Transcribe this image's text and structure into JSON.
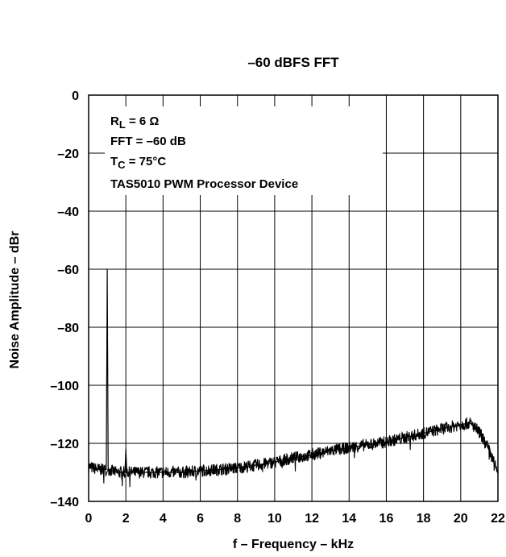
{
  "chart_data": {
    "type": "line",
    "title": "–60 dBFS FFT",
    "xlabel": "f – Frequency – kHz",
    "ylabel": "Noise Amplitude – dBr",
    "xlim": [
      0,
      22
    ],
    "ylim": [
      -140,
      0
    ],
    "xticks": [
      0,
      2,
      4,
      6,
      8,
      10,
      12,
      14,
      16,
      18,
      20,
      22
    ],
    "yticks": [
      0,
      -20,
      -40,
      -60,
      -80,
      -100,
      -120,
      -140
    ],
    "xtick_labels": [
      "0",
      "2",
      "4",
      "6",
      "8",
      "10",
      "12",
      "14",
      "16",
      "18",
      "20",
      "22"
    ],
    "ytick_labels": [
      "0",
      "–20",
      "–40",
      "–60",
      "–80",
      "–100",
      "–120",
      "–140"
    ],
    "grid": true,
    "annotation": {
      "rl_prefix": "R",
      "rl_sub": "L",
      "rl_rest": " = 6 Ω",
      "fft": "FFT = –60 dB",
      "tc_prefix": "T",
      "tc_sub": "C",
      "tc_rest": " = 75°C",
      "device": "TAS5010 PWM Processor Device"
    },
    "series": [
      {
        "x": [
          0,
          0.5,
          0.95,
          1.0,
          1.05,
          1.5,
          1.95,
          2.0,
          2.05,
          3,
          4,
          5,
          6,
          7,
          8,
          9,
          10,
          11,
          12,
          13,
          14,
          15,
          16,
          17,
          18,
          19,
          20,
          20.5,
          21,
          21.5,
          22
        ],
        "values": [
          -128,
          -129,
          -129,
          -60,
          -129,
          -130,
          -130,
          -122,
          -130,
          -130,
          -130,
          -130,
          -129.5,
          -129,
          -128.5,
          -127.5,
          -126.5,
          -125,
          -124,
          -122.5,
          -121.5,
          -120.5,
          -119.5,
          -118,
          -116.5,
          -115,
          -113.5,
          -113,
          -116,
          -122,
          -130
        ]
      }
    ]
  }
}
